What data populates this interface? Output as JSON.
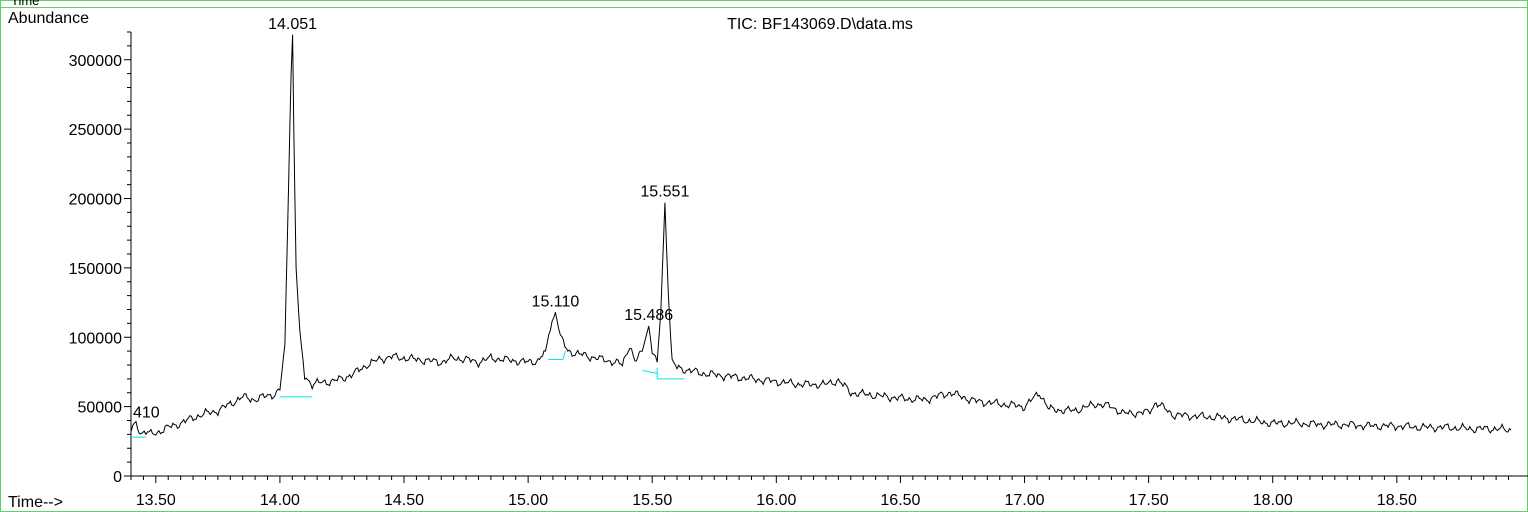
{
  "header": {
    "caption": "Time",
    "ylabel": "Abundance",
    "title": "TIC: BF143069.D\\data.ms",
    "xlabel": "Time-->"
  },
  "colors": {
    "trace": "#000000",
    "baseline": "#00e5e5",
    "frame": "#5fd35f"
  },
  "chart_data": {
    "type": "line",
    "title": "TIC: BF143069.D\\data.ms",
    "xlabel": "Time-->",
    "ylabel": "Abundance",
    "xlim": [
      13.4,
      18.96
    ],
    "ylim": [
      0,
      320000
    ],
    "x_ticks": [
      13.5,
      14.0,
      14.5,
      15.0,
      15.5,
      16.0,
      16.5,
      17.0,
      17.5,
      18.0,
      18.5
    ],
    "x_tick_labels": [
      "13.50",
      "14.00",
      "14.50",
      "15.00",
      "15.50",
      "16.00",
      "16.50",
      "17.00",
      "17.50",
      "18.00",
      "18.50"
    ],
    "y_ticks": [
      0,
      50000,
      100000,
      150000,
      200000,
      250000,
      300000
    ],
    "y_tick_labels": [
      "0",
      "50000",
      "100000",
      "150000",
      "200000",
      "250000",
      "300000"
    ],
    "grid": false,
    "legend": "none",
    "series": [
      {
        "x": [
          13.4,
          13.42,
          13.44,
          13.46,
          13.48,
          13.5,
          13.55,
          13.6,
          13.65,
          13.7,
          13.75,
          13.8,
          13.85,
          13.9,
          13.95,
          13.98,
          14.0,
          14.02,
          14.035,
          14.045,
          14.051,
          14.056,
          14.065,
          14.08,
          14.1,
          14.13,
          14.15,
          14.2,
          14.25,
          14.3,
          14.35,
          14.4,
          14.45,
          14.5,
          14.55,
          14.6,
          14.65,
          14.7,
          14.75,
          14.8,
          14.85,
          14.9,
          14.95,
          15.0,
          15.04,
          15.07,
          15.09,
          15.11,
          15.13,
          15.16,
          15.2,
          15.25,
          15.3,
          15.35,
          15.38,
          15.41,
          15.43,
          15.46,
          15.486,
          15.5,
          15.52,
          15.535,
          15.551,
          15.565,
          15.58,
          15.6,
          15.65,
          15.7,
          15.8,
          15.9,
          16.0,
          16.1,
          16.2,
          16.25,
          16.3,
          16.4,
          16.5,
          16.6,
          16.7,
          16.8,
          16.9,
          17.0,
          17.06,
          17.1,
          17.2,
          17.29,
          17.35,
          17.4,
          17.5,
          17.53,
          17.6,
          17.7,
          17.8,
          17.9,
          18.0,
          18.1,
          18.2,
          18.3,
          18.4,
          18.5,
          18.6,
          18.7,
          18.8,
          18.9,
          18.96
        ],
        "values": [
          33000,
          38000,
          31000,
          32000,
          30000,
          31000,
          35000,
          38000,
          42000,
          45000,
          47000,
          52000,
          57000,
          55000,
          58000,
          59000,
          62000,
          95000,
          210000,
          290000,
          318000,
          250000,
          150000,
          105000,
          72000,
          66000,
          67000,
          68000,
          70000,
          74000,
          80000,
          84000,
          86000,
          85000,
          84000,
          83000,
          82000,
          85000,
          84000,
          82000,
          85000,
          84000,
          83000,
          82000,
          83000,
          90000,
          108000,
          118000,
          100000,
          90000,
          88000,
          86000,
          84000,
          82000,
          80000,
          95000,
          82000,
          90000,
          108000,
          90000,
          82000,
          120000,
          197000,
          130000,
          82000,
          78000,
          76000,
          74000,
          72000,
          70000,
          68000,
          66000,
          66000,
          69000,
          60000,
          58000,
          56000,
          55000,
          60000,
          54000,
          52000,
          50000,
          60000,
          48000,
          47000,
          52000,
          50000,
          45000,
          46000,
          53000,
          44000,
          43000,
          42000,
          40000,
          38000,
          38000,
          37000,
          37000,
          36000,
          36000,
          35000,
          35000,
          34000,
          34000,
          33000
        ]
      }
    ],
    "peak_labels": [
      {
        "x": 13.41,
        "y": 38000,
        "text": "410"
      },
      {
        "x": 14.051,
        "y": 318000,
        "text": "14.051"
      },
      {
        "x": 15.11,
        "y": 118000,
        "text": "15.110"
      },
      {
        "x": 15.486,
        "y": 108000,
        "text": "15.486"
      },
      {
        "x": 15.551,
        "y": 197000,
        "text": "15.551"
      }
    ],
    "baselines": [
      {
        "x": [
          13.4,
          13.46
        ],
        "y": [
          28000,
          28000
        ]
      },
      {
        "x": [
          14.0,
          14.13
        ],
        "y": [
          57000,
          57000
        ]
      },
      {
        "x": [
          15.08,
          15.14
        ],
        "y": [
          84000,
          84000
        ]
      },
      {
        "x": [
          15.14,
          15.15
        ],
        "y": [
          84000,
          90000
        ]
      },
      {
        "x": [
          15.46,
          15.52
        ],
        "y": [
          76000,
          74000
        ]
      },
      {
        "x": [
          15.52,
          15.63
        ],
        "y": [
          70000,
          70000
        ]
      },
      {
        "x": [
          15.52,
          15.52
        ],
        "y": [
          70000,
          78000
        ]
      }
    ]
  }
}
